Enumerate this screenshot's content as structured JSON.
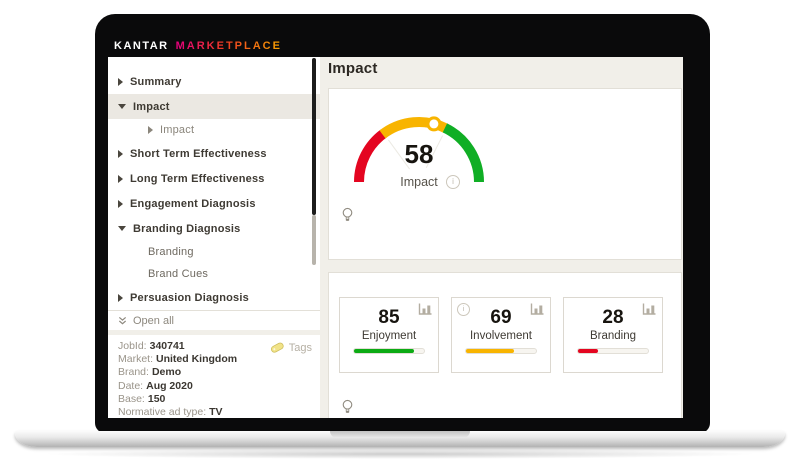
{
  "logo": {
    "brand": "KANTAR",
    "product": "MARKETPLACE"
  },
  "sidebar": {
    "items": [
      {
        "label": "Summary",
        "arrow": "right",
        "level": 1,
        "selected": false
      },
      {
        "label": "Impact",
        "arrow": "down",
        "level": 1,
        "selected": true
      },
      {
        "label": "Impact",
        "arrow": "right",
        "level": 2,
        "selected": false
      },
      {
        "label": "Short Term Effectiveness",
        "arrow": "right",
        "level": 1,
        "selected": false
      },
      {
        "label": "Long Term Effectiveness",
        "arrow": "right",
        "level": 1,
        "selected": false
      },
      {
        "label": "Engagement Diagnosis",
        "arrow": "right",
        "level": 1,
        "selected": false
      },
      {
        "label": "Branding Diagnosis",
        "arrow": "down",
        "level": 1,
        "selected": false
      },
      {
        "label": "Branding",
        "arrow": "none",
        "level": 2,
        "selected": false
      },
      {
        "label": "Brand Cues",
        "arrow": "none",
        "level": 2,
        "selected": false
      },
      {
        "label": "Persuasion Diagnosis",
        "arrow": "right",
        "level": 1,
        "selected": false
      }
    ],
    "open_all": "Open all"
  },
  "job_info": {
    "rows": [
      {
        "label": "JobId:",
        "value": "340741"
      },
      {
        "label": "Market:",
        "value": "United Kingdom"
      },
      {
        "label": "Brand:",
        "value": "Demo"
      },
      {
        "label": "Date:",
        "value": "Aug 2020"
      },
      {
        "label": "Base:",
        "value": "150"
      },
      {
        "label": "Normative ad type:",
        "value": "TV"
      }
    ],
    "tags_label": "Tags"
  },
  "main": {
    "title": "Impact",
    "gauge": {
      "value": 58,
      "label": "Impact",
      "min": 0,
      "max": 100,
      "segments": [
        {
          "to": 30,
          "color": "#e40520"
        },
        {
          "to": 65,
          "color": "#f8b400"
        },
        {
          "to": 100,
          "color": "#10ae25"
        }
      ]
    },
    "metrics": [
      {
        "value": 85,
        "label": "Enjoyment",
        "color": "#0cab14",
        "has_info": false
      },
      {
        "value": 69,
        "label": "Involvement",
        "color": "#f8b400",
        "has_info": true
      },
      {
        "value": 28,
        "label": "Branding",
        "color": "#e40520",
        "has_info": false
      }
    ]
  },
  "icons": {
    "tags": "tag-icon",
    "open_all": "double-chevron-down-icon",
    "metric_expand": "bar-chart-icon",
    "hint": "lightbulb-icon",
    "tooltip": "info-icon",
    "nav_collapsed": "chevron-right-icon",
    "nav_expanded": "chevron-down-icon"
  },
  "colors": {
    "accent_red": "#e40520",
    "accent_amber": "#f8b400",
    "accent_green": "#10ae25",
    "logo_gradient": [
      "#e6007e",
      "#ee3a24",
      "#f7a400"
    ]
  }
}
